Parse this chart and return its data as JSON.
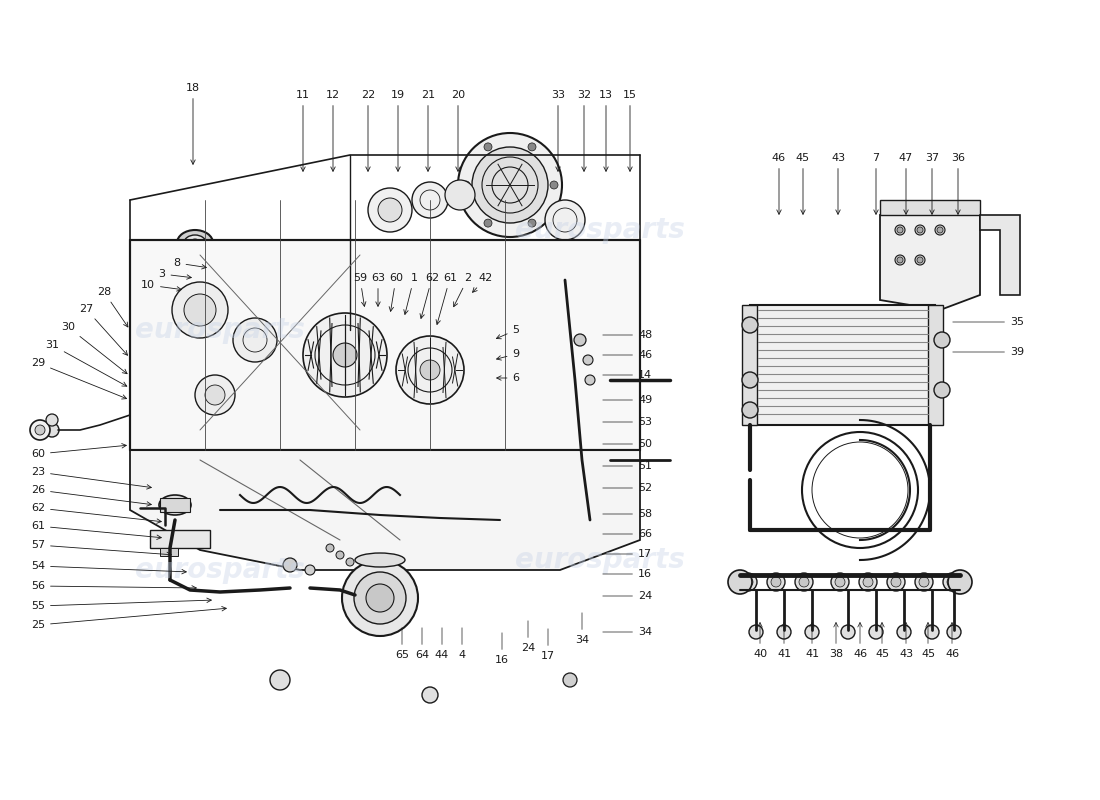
{
  "bg_color": "#ffffff",
  "line_color": "#1a1a1a",
  "watermark_color": "#c8d4e8",
  "figsize": [
    11.0,
    8.0
  ],
  "dpi": 100,
  "top_labels": [
    [
      "18",
      193,
      88
    ],
    [
      "11",
      303,
      95
    ],
    [
      "12",
      333,
      95
    ],
    [
      "22",
      368,
      95
    ],
    [
      "19",
      398,
      95
    ],
    [
      "21",
      428,
      95
    ],
    [
      "20",
      458,
      95
    ],
    [
      "33",
      558,
      95
    ],
    [
      "32",
      584,
      95
    ],
    [
      "13",
      606,
      95
    ],
    [
      "15",
      630,
      95
    ]
  ],
  "mid_row_labels": [
    [
      "29",
      38,
      365
    ],
    [
      "31",
      52,
      348
    ],
    [
      "30",
      68,
      330
    ],
    [
      "27",
      86,
      312
    ],
    [
      "28",
      104,
      295
    ],
    [
      "10",
      146,
      290
    ],
    [
      "3",
      160,
      278
    ],
    [
      "8",
      174,
      266
    ],
    [
      "59",
      356,
      290
    ],
    [
      "63",
      374,
      290
    ],
    [
      "60",
      392,
      290
    ],
    [
      "1",
      410,
      290
    ],
    [
      "62",
      428,
      290
    ],
    [
      "61",
      446,
      290
    ],
    [
      "2",
      464,
      290
    ],
    [
      "42",
      482,
      290
    ],
    [
      "5",
      510,
      335
    ],
    [
      "9",
      510,
      357
    ],
    [
      "6",
      510,
      379
    ]
  ],
  "right_col_labels": [
    [
      "48",
      638,
      335
    ],
    [
      "46",
      638,
      355
    ],
    [
      "14",
      638,
      375
    ],
    [
      "49",
      638,
      400
    ],
    [
      "53",
      638,
      422
    ],
    [
      "50",
      638,
      444
    ],
    [
      "51",
      638,
      466
    ],
    [
      "52",
      638,
      488
    ],
    [
      "58",
      638,
      514
    ],
    [
      "66",
      638,
      534
    ],
    [
      "17",
      638,
      554
    ],
    [
      "16",
      638,
      574
    ],
    [
      "24",
      638,
      596
    ],
    [
      "34",
      638,
      632
    ]
  ],
  "left_col_labels": [
    [
      "60",
      38,
      455
    ],
    [
      "23",
      38,
      475
    ],
    [
      "26",
      38,
      495
    ],
    [
      "62",
      38,
      515
    ],
    [
      "61",
      38,
      535
    ],
    [
      "57",
      38,
      555
    ],
    [
      "54",
      38,
      578
    ],
    [
      "56",
      38,
      598
    ],
    [
      "55",
      38,
      618
    ],
    [
      "25",
      38,
      638
    ]
  ],
  "bot_labels": [
    [
      "65",
      402,
      655
    ],
    [
      "64",
      422,
      655
    ],
    [
      "44",
      442,
      655
    ],
    [
      "4",
      462,
      655
    ],
    [
      "16",
      502,
      660
    ],
    [
      "24",
      528,
      648
    ],
    [
      "17",
      548,
      656
    ],
    [
      "34",
      582,
      640
    ]
  ],
  "right_panel_top": [
    [
      "46",
      779,
      158
    ],
    [
      "45",
      803,
      158
    ],
    [
      "43",
      838,
      158
    ],
    [
      "7",
      876,
      158
    ],
    [
      "47",
      906,
      158
    ],
    [
      "37",
      932,
      158
    ],
    [
      "36",
      958,
      158
    ]
  ],
  "right_panel_side": [
    [
      "35",
      1010,
      322
    ],
    [
      "39",
      1010,
      352
    ]
  ],
  "right_panel_bot": [
    [
      "40",
      760,
      654
    ],
    [
      "41",
      784,
      654
    ],
    [
      "41",
      812,
      654
    ],
    [
      "38",
      836,
      654
    ],
    [
      "46",
      860,
      654
    ],
    [
      "45",
      882,
      654
    ],
    [
      "43",
      906,
      654
    ],
    [
      "45",
      928,
      654
    ],
    [
      "46",
      952,
      654
    ]
  ]
}
